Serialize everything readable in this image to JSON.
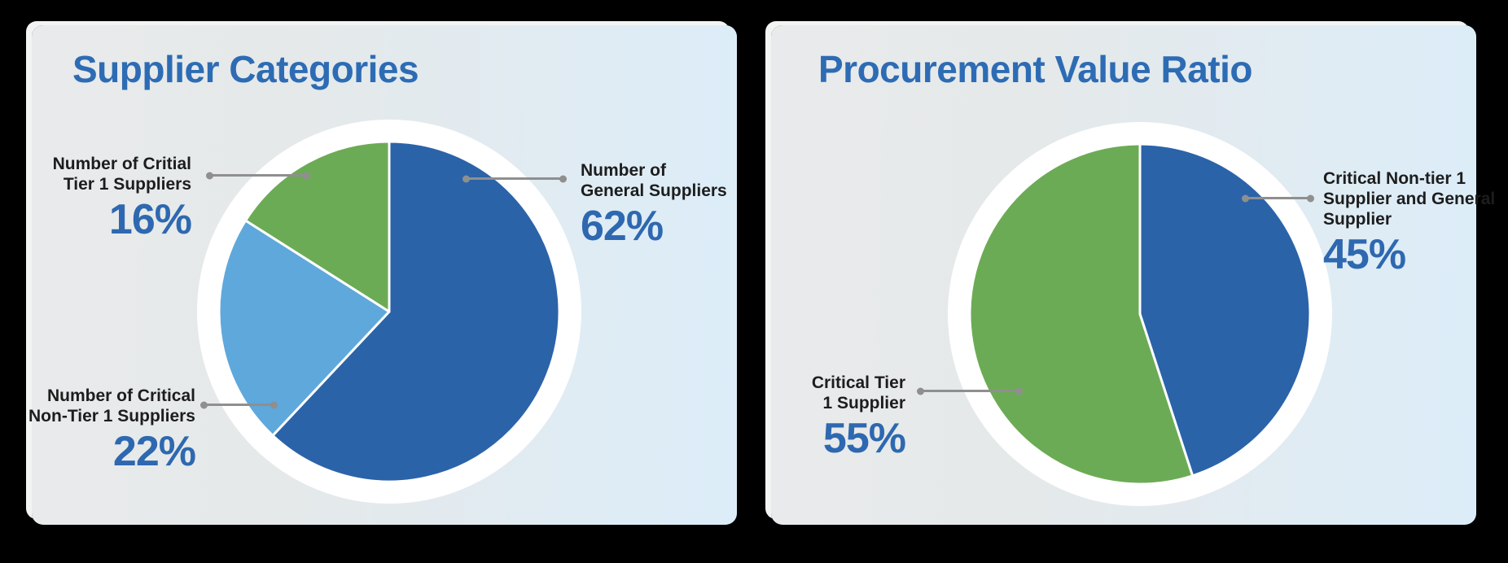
{
  "palette": {
    "background": "#000000",
    "card_gradient_left": "#e9eaeb",
    "card_gradient_right": "#dcedf9",
    "title_blue": "#2d6cb4",
    "value_blue": "#2e68b0",
    "label_dark": "#1d1d1d",
    "leader_gray": "#8f8f8f",
    "pie_ring_white": "#ffffff",
    "slice_dark_blue": "#2b63a9",
    "slice_light_blue": "#5fa8dc",
    "slice_green": "#6cab55"
  },
  "cards": [
    {
      "title": "Supplier Categories",
      "callouts": [
        {
          "lines": [
            "Number of Critial",
            "Tier 1 Suppliers"
          ],
          "value": "16%"
        },
        {
          "lines": [
            "Number of",
            "General Suppliers"
          ],
          "value": "62%"
        },
        {
          "lines": [
            "Number of Critical",
            "Non-Tier 1 Suppliers"
          ],
          "value": "22%"
        }
      ]
    },
    {
      "title": "Procurement Value Ratio",
      "callouts": [
        {
          "lines": [
            "Critical Non-tier 1",
            "Supplier and General",
            "Supplier"
          ],
          "value": "45%"
        },
        {
          "lines": [
            "Critical Tier",
            "1 Supplier"
          ],
          "value": "55%"
        }
      ]
    }
  ],
  "chart_data": [
    {
      "type": "pie",
      "title": "Supplier Categories",
      "labels": [
        "Number of General Suppliers",
        "Number of Critical Non-Tier 1 Suppliers",
        "Number of Critial Tier 1 Suppliers"
      ],
      "values": [
        62,
        22,
        16
      ],
      "colors": [
        "#2b63a9",
        "#5fa8dc",
        "#6cab55"
      ],
      "unit": "%",
      "start_angle_deg": 0,
      "direction": "clockwise",
      "legend_position": "callouts-with-leader-lines"
    },
    {
      "type": "pie",
      "title": "Procurement Value Ratio",
      "labels": [
        "Critical Non-tier 1 Supplier and General Supplier",
        "Critical Tier 1 Supplier"
      ],
      "values": [
        45,
        55
      ],
      "colors": [
        "#2b63a9",
        "#6cab55"
      ],
      "unit": "%",
      "start_angle_deg": 0,
      "direction": "clockwise",
      "legend_position": "callouts-with-leader-lines"
    }
  ]
}
